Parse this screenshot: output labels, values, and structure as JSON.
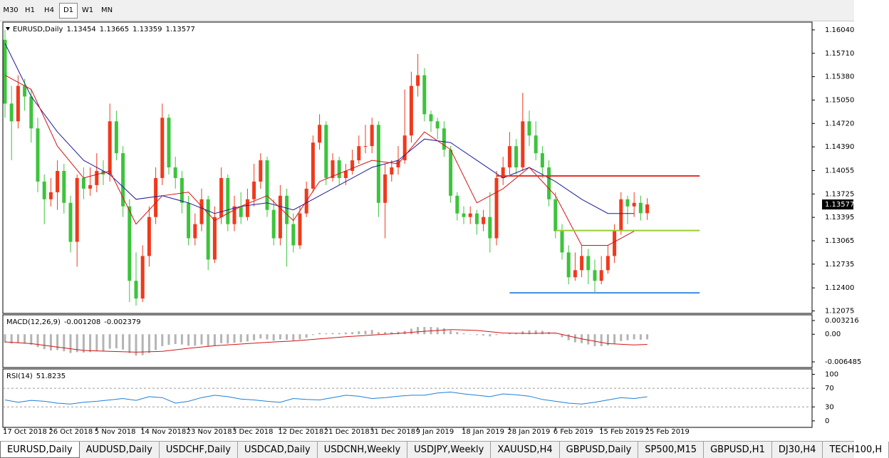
{
  "toolbar": {
    "timeframes": [
      "M30",
      "H1",
      "H4",
      "D1",
      "W1",
      "MN"
    ],
    "active_timeframe": 3
  },
  "chart_data": [
    {
      "type": "candlestick",
      "title": "EURUSD,Daily",
      "up_color": "#f0391c",
      "down_color": "#3cc43c",
      "open": [
        1.159,
        1.15,
        1.1475,
        1.1525,
        1.151,
        1.1465,
        1.139,
        1.1365,
        1.1375,
        1.1405,
        1.136,
        1.1305,
        1.1395,
        1.138,
        1.1385,
        1.1405,
        1.14,
        1.1475,
        1.143,
        1.1355,
        1.125,
        1.1225,
        1.1285,
        1.134,
        1.1395,
        1.148,
        1.141,
        1.1395,
        1.136,
        1.131,
        1.133,
        1.1365,
        1.128,
        1.134,
        1.1395,
        1.133,
        1.1355,
        1.134,
        1.1365,
        1.139,
        1.142,
        1.135,
        1.131,
        1.137,
        1.133,
        1.13,
        1.1345,
        1.138,
        1.1445,
        1.147,
        1.1395,
        1.142,
        1.1395,
        1.1405,
        1.142,
        1.144,
        1.144,
        1.147,
        1.136,
        1.14,
        1.141,
        1.142,
        1.1455,
        1.1525,
        1.154,
        1.1485,
        1.1475,
        1.1465,
        1.1435,
        1.137,
        1.1345,
        1.134,
        1.1345,
        1.133,
        1.134,
        1.131,
        1.1395,
        1.141,
        1.144,
        1.141,
        1.1475,
        1.1455,
        1.143,
        1.141,
        1.1365,
        1.132,
        1.129,
        1.1255,
        1.1265,
        1.1285,
        1.1265,
        1.125,
        1.1265,
        1.1285,
        1.132,
        1.1365,
        1.1355,
        1.136,
        1.13454
      ],
      "high": [
        1.1604,
        1.1525,
        1.154,
        1.1535,
        1.152,
        1.148,
        1.14,
        1.1395,
        1.142,
        1.1415,
        1.137,
        1.14,
        1.141,
        1.141,
        1.143,
        1.142,
        1.15,
        1.149,
        1.144,
        1.1365,
        1.129,
        1.13,
        1.1355,
        1.141,
        1.15,
        1.1485,
        1.1425,
        1.1405,
        1.137,
        1.1345,
        1.138,
        1.137,
        1.1355,
        1.141,
        1.14,
        1.137,
        1.1375,
        1.138,
        1.1415,
        1.143,
        1.1425,
        1.1365,
        1.1385,
        1.138,
        1.1345,
        1.1355,
        1.139,
        1.1455,
        1.1485,
        1.1475,
        1.143,
        1.1425,
        1.1415,
        1.1435,
        1.1455,
        1.147,
        1.148,
        1.1475,
        1.1415,
        1.142,
        1.144,
        1.152,
        1.1545,
        1.157,
        1.155,
        1.149,
        1.148,
        1.1475,
        1.144,
        1.1375,
        1.1355,
        1.1355,
        1.135,
        1.135,
        1.1375,
        1.1405,
        1.1425,
        1.146,
        1.145,
        1.1515,
        1.149,
        1.1475,
        1.144,
        1.142,
        1.1375,
        1.133,
        1.13,
        1.129,
        1.13,
        1.1295,
        1.128,
        1.1285,
        1.13,
        1.133,
        1.1375,
        1.137,
        1.1375,
        1.137,
        1.13665
      ],
      "low": [
        1.148,
        1.142,
        1.1465,
        1.149,
        1.1445,
        1.1375,
        1.133,
        1.1355,
        1.135,
        1.1345,
        1.129,
        1.127,
        1.1365,
        1.137,
        1.1375,
        1.1385,
        1.139,
        1.142,
        1.134,
        1.122,
        1.1215,
        1.122,
        1.127,
        1.133,
        1.1385,
        1.14,
        1.138,
        1.1345,
        1.13,
        1.13,
        1.132,
        1.1265,
        1.1275,
        1.133,
        1.132,
        1.132,
        1.133,
        1.1335,
        1.1355,
        1.138,
        1.134,
        1.13,
        1.13,
        1.127,
        1.129,
        1.1295,
        1.134,
        1.1375,
        1.1435,
        1.1385,
        1.139,
        1.1385,
        1.1385,
        1.14,
        1.1415,
        1.143,
        1.143,
        1.134,
        1.131,
        1.139,
        1.14,
        1.1415,
        1.1445,
        1.151,
        1.1475,
        1.146,
        1.145,
        1.1425,
        1.136,
        1.1335,
        1.133,
        1.133,
        1.1315,
        1.132,
        1.129,
        1.13,
        1.1385,
        1.14,
        1.14,
        1.1405,
        1.144,
        1.142,
        1.1395,
        1.1355,
        1.131,
        1.128,
        1.1245,
        1.125,
        1.1255,
        1.1245,
        1.1234,
        1.1245,
        1.126,
        1.1275,
        1.1315,
        1.133,
        1.134,
        1.1335,
        1.13359
      ],
      "close": [
        1.15,
        1.1475,
        1.1525,
        1.151,
        1.1465,
        1.139,
        1.1365,
        1.1375,
        1.1405,
        1.136,
        1.1305,
        1.1395,
        1.138,
        1.1385,
        1.1405,
        1.14,
        1.1475,
        1.143,
        1.1355,
        1.125,
        1.1225,
        1.1285,
        1.134,
        1.1395,
        1.148,
        1.141,
        1.1395,
        1.136,
        1.131,
        1.133,
        1.1365,
        1.128,
        1.134,
        1.1395,
        1.133,
        1.1355,
        1.134,
        1.1365,
        1.139,
        1.142,
        1.135,
        1.131,
        1.137,
        1.133,
        1.13,
        1.1345,
        1.138,
        1.1445,
        1.147,
        1.1395,
        1.142,
        1.1395,
        1.1405,
        1.142,
        1.144,
        1.144,
        1.147,
        1.136,
        1.14,
        1.141,
        1.142,
        1.1455,
        1.1525,
        1.154,
        1.1485,
        1.1475,
        1.1465,
        1.1435,
        1.137,
        1.1345,
        1.134,
        1.1345,
        1.133,
        1.134,
        1.131,
        1.1395,
        1.141,
        1.144,
        1.141,
        1.1475,
        1.1455,
        1.143,
        1.141,
        1.1365,
        1.132,
        1.129,
        1.1255,
        1.1265,
        1.1285,
        1.1265,
        1.125,
        1.1265,
        1.1285,
        1.132,
        1.1365,
        1.1355,
        1.136,
        1.13454,
        1.13577
      ],
      "series": [
        {
          "color": "#1c1c9c",
          "x": [
            0,
            4,
            8,
            12,
            16,
            20,
            24,
            28,
            32,
            36,
            40,
            44,
            48,
            52,
            56,
            60,
            64,
            68,
            72,
            76,
            80,
            84,
            88,
            92,
            96
          ],
          "values": [
            1.1585,
            1.151,
            1.146,
            1.142,
            1.14,
            1.1365,
            1.137,
            1.136,
            1.1345,
            1.1355,
            1.136,
            1.135,
            1.137,
            1.139,
            1.141,
            1.142,
            1.145,
            1.1445,
            1.142,
            1.1395,
            1.141,
            1.139,
            1.1365,
            1.1345,
            1.1345
          ]
        },
        {
          "color": "#d41414",
          "x": [
            0,
            4,
            8,
            12,
            16,
            20,
            24,
            28,
            32,
            36,
            40,
            44,
            48,
            52,
            56,
            60,
            64,
            68,
            72,
            76,
            80,
            84,
            88,
            92,
            96
          ],
          "values": [
            1.154,
            1.152,
            1.144,
            1.1395,
            1.1405,
            1.133,
            1.137,
            1.1375,
            1.1335,
            1.1355,
            1.137,
            1.1335,
            1.139,
            1.1405,
            1.142,
            1.1415,
            1.146,
            1.1435,
            1.136,
            1.138,
            1.141,
            1.137,
            1.13,
            1.13,
            1.132
          ]
        }
      ],
      "hlines": [
        {
          "value": 1.1398,
          "color": "#e8322a",
          "x": [
            75,
            106
          ]
        },
        {
          "value": 1.1321,
          "color": "#9acd32",
          "x": [
            84,
            106
          ]
        },
        {
          "value": 1.1233,
          "color": "#3d8ee0",
          "x": [
            77,
            106
          ]
        }
      ],
      "ylim": [
        1.1204,
        1.1614
      ],
      "yticks": [
        {
          "value": 1.1604,
          "label": "1.16040"
        },
        {
          "value": 1.1571,
          "label": "1.15710"
        },
        {
          "value": 1.1538,
          "label": "1.15380"
        },
        {
          "value": 1.1505,
          "label": "1.15050"
        },
        {
          "value": 1.1472,
          "label": "1.14720"
        },
        {
          "value": 1.1439,
          "label": "1.14390"
        },
        1.14055,
        1.13725,
        1.13395,
        1.13065,
        1.12735,
        {
          "value": 1.124,
          "label": "1.12400"
        },
        1.12075
      ],
      "xticks": [
        {
          "value": 0,
          "label": "17 Oct 2018"
        },
        {
          "value": 7,
          "label": "26 Oct 2018"
        },
        {
          "value": 14,
          "label": "5 Nov 2018"
        },
        {
          "value": 21,
          "label": "14 Nov 2018"
        },
        {
          "value": 28,
          "label": "23 Nov 2018"
        },
        {
          "value": 35,
          "label": "3 Dec 2018"
        },
        {
          "value": 42,
          "label": "12 Dec 2018"
        },
        {
          "value": 49,
          "label": "21 Dec 2018"
        },
        {
          "value": 56,
          "label": "31 Dec 2018"
        },
        {
          "value": 63,
          "label": "9 Jan 2019"
        },
        {
          "value": 70,
          "label": "18 Jan 2019"
        },
        {
          "value": 77,
          "label": "28 Jan 2019"
        },
        {
          "value": 84,
          "label": "6 Feb 2019"
        },
        {
          "value": 91,
          "label": "15 Feb 2019"
        },
        {
          "value": 98,
          "label": "25 Feb 2019"
        }
      ]
    },
    {
      "type": "macd",
      "title": "MACD(12,26,9)",
      "color": "#b4b4b4",
      "values": [
        -0.002,
        -0.0022,
        -0.0021,
        -0.0022,
        -0.0025,
        -0.003,
        -0.0035,
        -0.0038,
        -0.0037,
        -0.004,
        -0.0044,
        -0.0042,
        -0.0043,
        -0.0042,
        -0.004,
        -0.004,
        -0.0034,
        -0.0033,
        -0.0036,
        -0.0044,
        -0.005,
        -0.0049,
        -0.0044,
        -0.0037,
        -0.0028,
        -0.0025,
        -0.0023,
        -0.0024,
        -0.0027,
        -0.0027,
        -0.0024,
        -0.0028,
        -0.0027,
        -0.0021,
        -0.0022,
        -0.002,
        -0.0019,
        -0.0017,
        -0.0014,
        -0.001,
        -0.0012,
        -0.0015,
        -0.0012,
        -0.0013,
        -0.0015,
        -0.0012,
        -0.0008,
        -0.0002,
        0.0003,
        0.0002,
        0.0003,
        0.0003,
        0.0004,
        0.0005,
        0.0007,
        0.0008,
        0.001,
        0.0005,
        0.0005,
        0.0005,
        0.0006,
        0.0008,
        0.0013,
        0.0017,
        0.0017,
        0.0017,
        0.0016,
        0.0014,
        0.0009,
        0.0005,
        0.0002,
        0,
        -0.0002,
        -0.0003,
        -0.0005,
        -0.0002,
        0,
        0.0003,
        0.0003,
        0.0007,
        0.0009,
        0.0009,
        0.0008,
        0.0005,
        0,
        -0.0007,
        -0.0014,
        -0.0019,
        -0.0021,
        -0.0024,
        -0.0028,
        -0.0028,
        -0.0026,
        -0.0022,
        -0.0016,
        -0.0014,
        -0.0012,
        -0.0013,
        -0.001208
      ],
      "signal": {
        "color": "#d41414",
        "x": [
          0,
          4,
          8,
          12,
          16,
          20,
          24,
          28,
          32,
          36,
          40,
          44,
          48,
          52,
          56,
          60,
          64,
          68,
          72,
          76,
          80,
          84,
          88,
          92,
          96,
          98
        ],
        "values": [
          -0.0018,
          -0.0022,
          -0.003,
          -0.0038,
          -0.004,
          -0.0042,
          -0.004,
          -0.0033,
          -0.0027,
          -0.0023,
          -0.0019,
          -0.0016,
          -0.0011,
          -0.0006,
          -0.0002,
          0.0002,
          0.0007,
          0.0011,
          0.0009,
          0.0003,
          0.0002,
          0.0003,
          -0.0011,
          -0.0022,
          -0.0025,
          -0.002379
        ]
      },
      "ylim": [
        -0.00782,
        0.00439
      ],
      "yticks": [
        0.003216,
        {
          "value": 0,
          "label": "0.00"
        },
        -0.006485
      ]
    },
    {
      "type": "line",
      "title": "RSI(14)",
      "color": "#1e7fd8",
      "x": [
        0,
        2,
        4,
        6,
        8,
        10,
        12,
        14,
        16,
        18,
        20,
        22,
        24,
        26,
        28,
        30,
        32,
        34,
        36,
        38,
        40,
        42,
        44,
        46,
        48,
        50,
        52,
        54,
        56,
        58,
        60,
        62,
        64,
        66,
        68,
        70,
        72,
        74,
        76,
        78,
        80,
        82,
        84,
        86,
        88,
        90,
        92,
        94,
        96,
        98
      ],
      "values": [
        45,
        40,
        44,
        42,
        38,
        36,
        40,
        42,
        45,
        48,
        44,
        52,
        50,
        38,
        42,
        50,
        55,
        52,
        47,
        45,
        42,
        40,
        48,
        46,
        45,
        50,
        55,
        53,
        48,
        50,
        53,
        55,
        55,
        60,
        62,
        58,
        55,
        52,
        58,
        56,
        53,
        46,
        42,
        38,
        36,
        40,
        45,
        50,
        48,
        51.8235
      ],
      "levels": [
        70,
        30
      ],
      "ylim": [
        -14,
        110
      ],
      "yticks": [
        100,
        70,
        30,
        0
      ]
    }
  ],
  "tabs": [
    "EURUSD,Daily",
    "AUDUSD,Daily",
    "USDCHF,Daily",
    "USDCAD,Daily",
    "USDCNH,Weekly",
    "USDJPY,Weekly",
    "XAUUSD,H4",
    "GBPUSD,Daily",
    "SP500,M15",
    "GBPUSD,H1",
    "DJ30,H4",
    "TECH100,H"
  ],
  "active_tab": 0
}
